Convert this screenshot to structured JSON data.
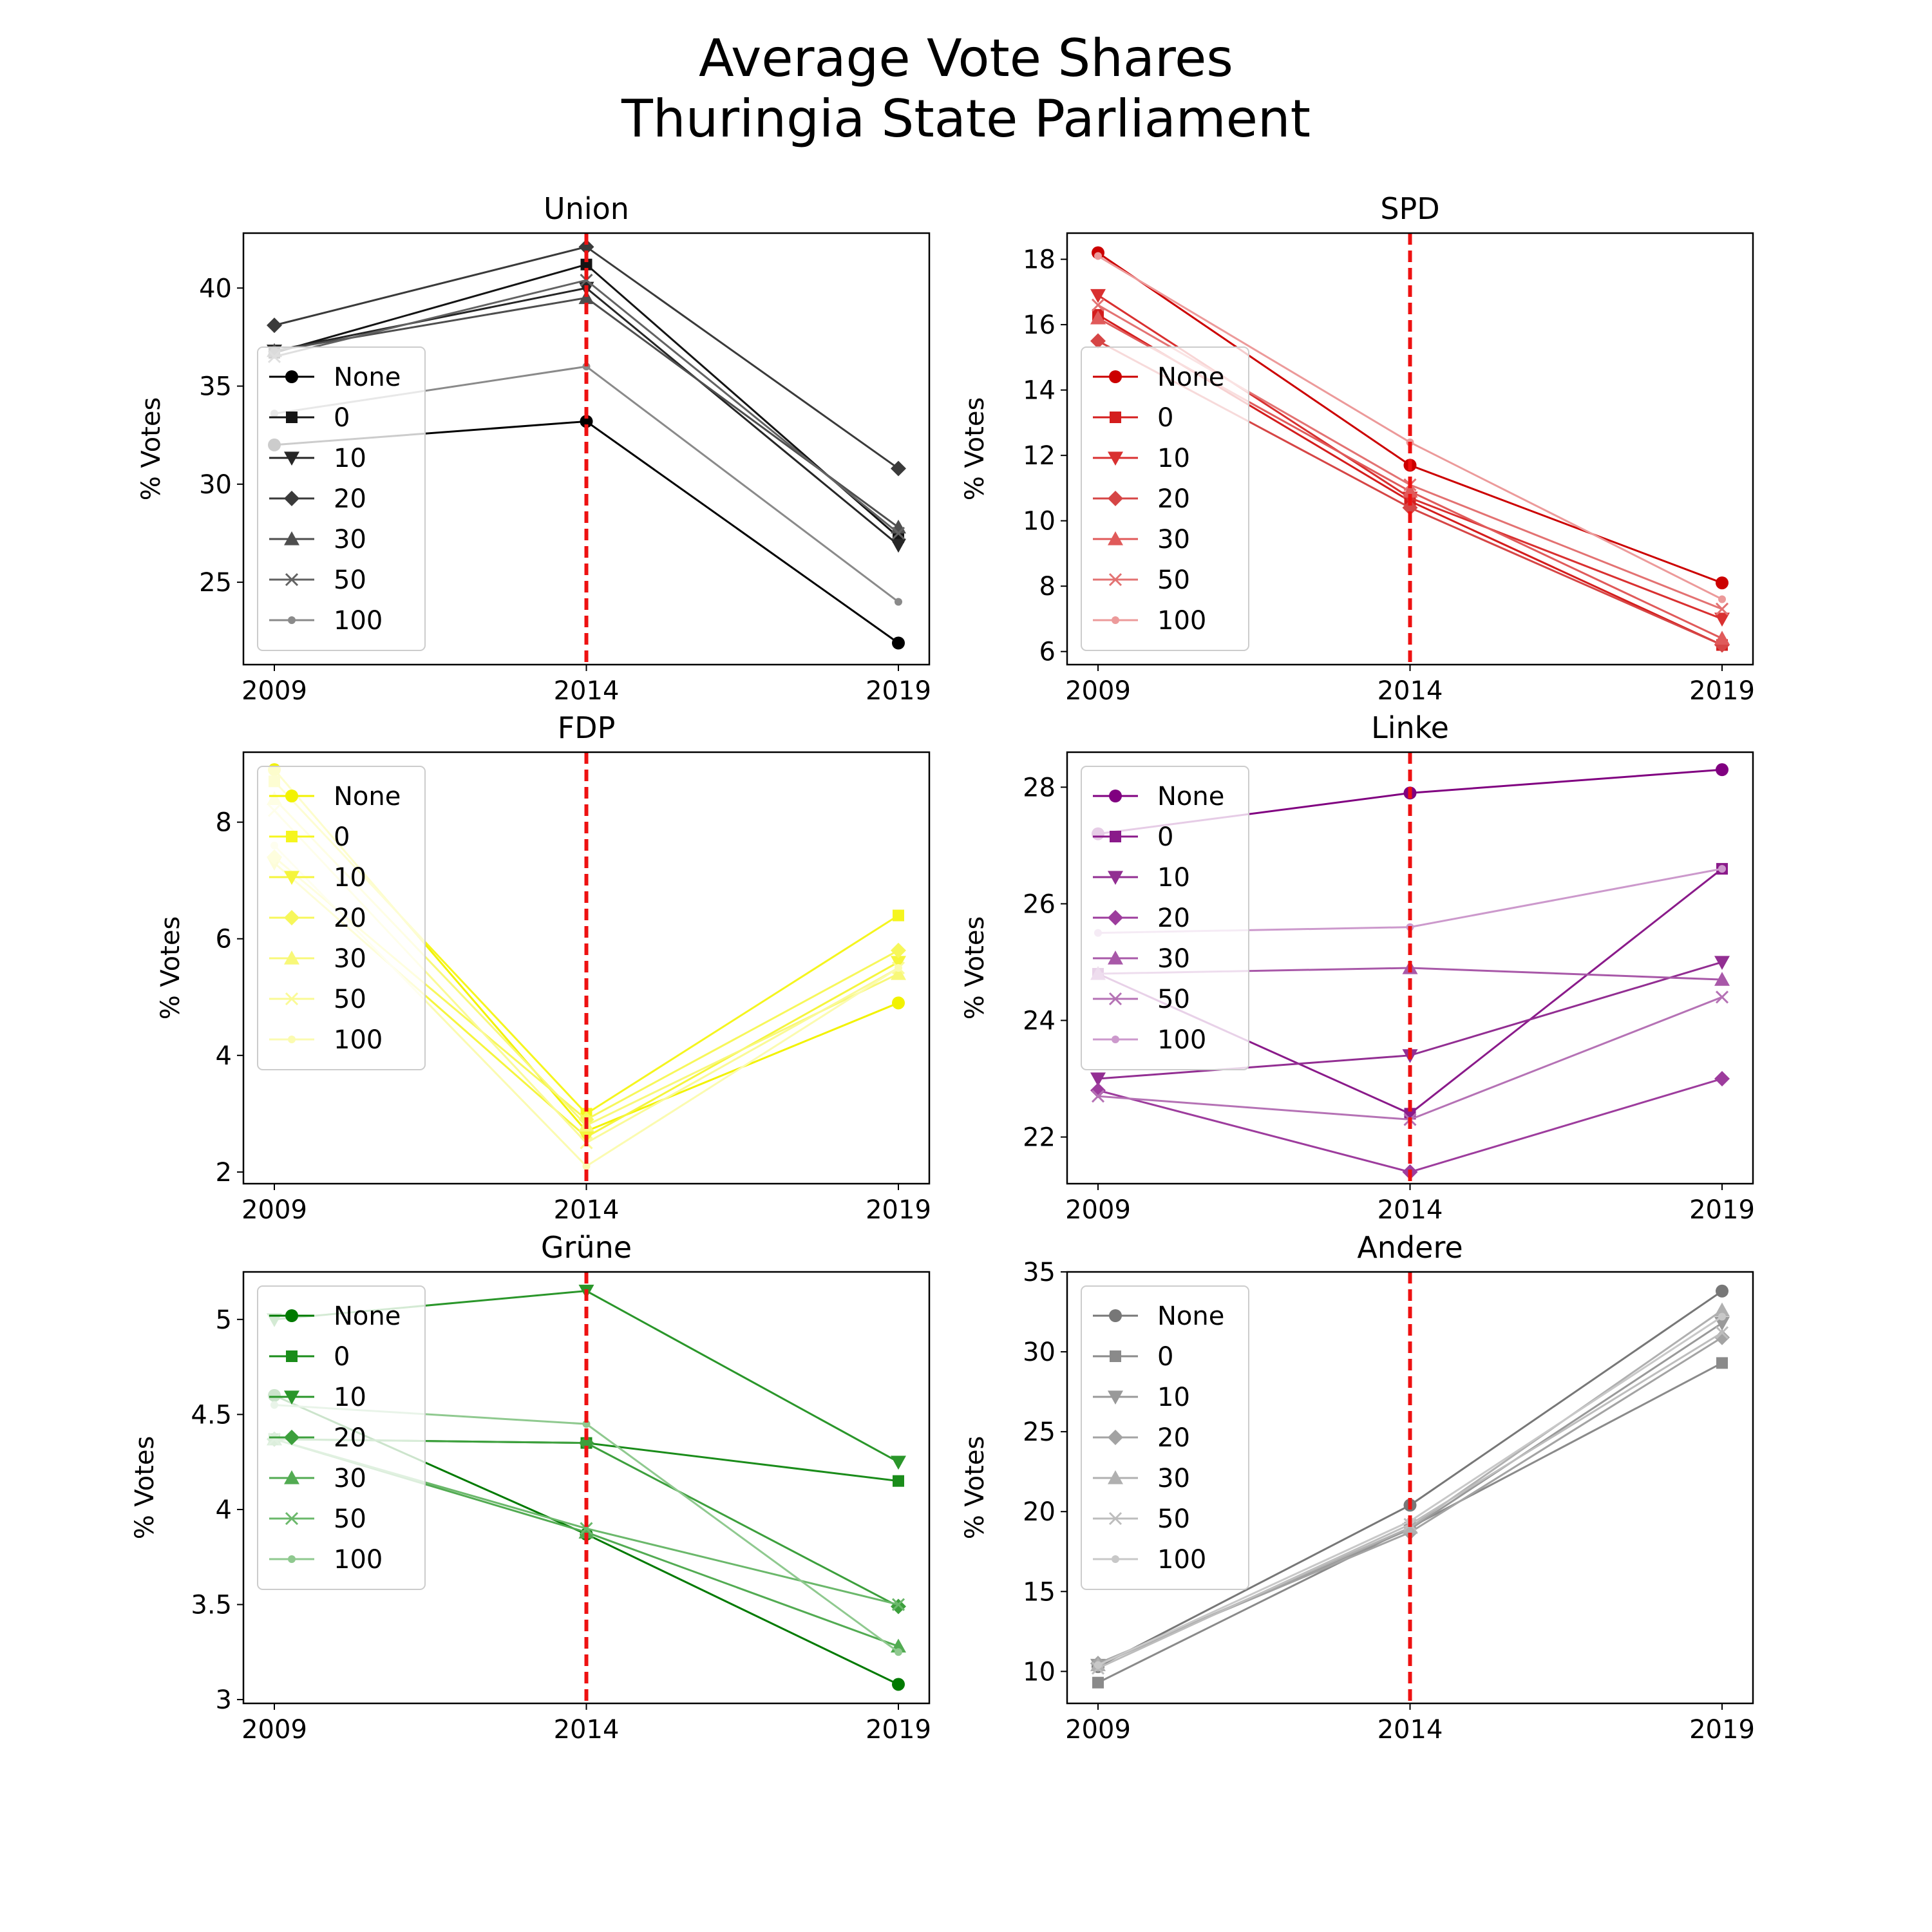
{
  "figure": {
    "title_line1": "Average Vote Shares",
    "title_line2": "Thuringia State Parliament"
  },
  "chart_data": [
    {
      "type": "line",
      "title": "Union",
      "xlabel": "",
      "ylabel": "% Votes",
      "x": [
        "2009",
        "2014",
        "2019"
      ],
      "ylim": [
        20.8,
        42.8
      ],
      "yticks": [
        25,
        30,
        35,
        40
      ],
      "legend": "lower-left",
      "reference_line": {
        "x": "2014",
        "color": "#ee1111"
      },
      "series": [
        {
          "name": "None",
          "marker": "circle",
          "color": "#000000",
          "values": [
            32.0,
            33.2,
            21.9
          ]
        },
        {
          "name": "0",
          "marker": "square",
          "color": "#141414",
          "values": [
            36.7,
            41.2,
            27.3
          ]
        },
        {
          "name": "10",
          "marker": "triangle-down",
          "color": "#262626",
          "values": [
            36.8,
            40.0,
            26.9
          ]
        },
        {
          "name": "20",
          "marker": "diamond",
          "color": "#3a3a3a",
          "values": [
            38.1,
            42.1,
            30.8
          ]
        },
        {
          "name": "30",
          "marker": "triangle-up",
          "color": "#4e4e4e",
          "values": [
            36.8,
            39.5,
            27.8
          ]
        },
        {
          "name": "50",
          "marker": "x",
          "color": "#626262",
          "values": [
            36.5,
            40.4,
            27.5
          ]
        },
        {
          "name": "100",
          "marker": "point",
          "color": "#8a8a8a",
          "values": [
            33.6,
            36.0,
            24.0
          ]
        }
      ]
    },
    {
      "type": "line",
      "title": "SPD",
      "xlabel": "",
      "ylabel": "% Votes",
      "x": [
        "2009",
        "2014",
        "2019"
      ],
      "ylim": [
        5.6,
        18.8
      ],
      "yticks": [
        6,
        8,
        10,
        12,
        14,
        16,
        18
      ],
      "legend": "lower-left",
      "reference_line": {
        "x": "2014",
        "color": "#ee1111"
      },
      "series": [
        {
          "name": "None",
          "marker": "circle",
          "color": "#cc0000",
          "values": [
            18.2,
            11.7,
            8.1
          ]
        },
        {
          "name": "0",
          "marker": "square",
          "color": "#d41d1d",
          "values": [
            16.3,
            10.6,
            6.2
          ]
        },
        {
          "name": "10",
          "marker": "triangle-down",
          "color": "#d93030",
          "values": [
            16.9,
            10.7,
            7.0
          ]
        },
        {
          "name": "20",
          "marker": "diamond",
          "color": "#d64545",
          "values": [
            15.5,
            10.4,
            6.2
          ]
        },
        {
          "name": "30",
          "marker": "triangle-up",
          "color": "#e05a5a",
          "values": [
            16.2,
            10.9,
            6.4
          ]
        },
        {
          "name": "50",
          "marker": "x",
          "color": "#e37272",
          "values": [
            16.6,
            11.1,
            7.3
          ]
        },
        {
          "name": "100",
          "marker": "point",
          "color": "#ec9a9a",
          "values": [
            18.1,
            12.4,
            7.6
          ]
        }
      ]
    },
    {
      "type": "line",
      "title": "FDP",
      "xlabel": "",
      "ylabel": "% Votes",
      "x": [
        "2009",
        "2014",
        "2019"
      ],
      "ylim": [
        1.8,
        9.2
      ],
      "yticks": [
        2,
        4,
        6,
        8
      ],
      "legend": "upper-left",
      "reference_line": {
        "x": "2014",
        "color": "#ee1111"
      },
      "series": [
        {
          "name": "None",
          "marker": "circle",
          "color": "#f2f200",
          "values": [
            8.9,
            2.7,
            4.9
          ]
        },
        {
          "name": "0",
          "marker": "square",
          "color": "#f5f51e",
          "values": [
            8.7,
            3.0,
            6.4
          ]
        },
        {
          "name": "10",
          "marker": "triangle-down",
          "color": "#f5f53c",
          "values": [
            7.3,
            2.6,
            5.6
          ]
        },
        {
          "name": "20",
          "marker": "diamond",
          "color": "#f7f75a",
          "values": [
            7.4,
            2.9,
            5.8
          ]
        },
        {
          "name": "30",
          "marker": "triangle-up",
          "color": "#f8f878",
          "values": [
            8.4,
            2.8,
            5.4
          ]
        },
        {
          "name": "50",
          "marker": "x",
          "color": "#fafa96",
          "values": [
            8.2,
            2.5,
            5.5
          ]
        },
        {
          "name": "100",
          "marker": "point",
          "color": "#fbfbb0",
          "values": [
            7.6,
            2.1,
            5.5
          ]
        }
      ]
    },
    {
      "type": "line",
      "title": "Linke",
      "xlabel": "",
      "ylabel": "% Votes",
      "x": [
        "2009",
        "2014",
        "2019"
      ],
      "ylim": [
        21.2,
        28.6
      ],
      "yticks": [
        22,
        24,
        26,
        28
      ],
      "legend": "upper-left",
      "reference_line": {
        "x": "2014",
        "color": "#ee1111"
      },
      "series": [
        {
          "name": "None",
          "marker": "circle",
          "color": "#800080",
          "values": [
            27.2,
            27.9,
            28.3
          ]
        },
        {
          "name": "0",
          "marker": "square",
          "color": "#8a1a8a",
          "values": [
            24.8,
            22.4,
            26.6
          ]
        },
        {
          "name": "10",
          "marker": "triangle-down",
          "color": "#922e92",
          "values": [
            23.0,
            23.4,
            25.0
          ]
        },
        {
          "name": "20",
          "marker": "diamond",
          "color": "#9d3c9d",
          "values": [
            22.8,
            21.4,
            23.0
          ]
        },
        {
          "name": "30",
          "marker": "triangle-up",
          "color": "#a858a8",
          "values": [
            24.8,
            24.9,
            24.7
          ]
        },
        {
          "name": "50",
          "marker": "x",
          "color": "#b572b5",
          "values": [
            22.7,
            22.3,
            24.4
          ]
        },
        {
          "name": "100",
          "marker": "point",
          "color": "#cc99cc",
          "values": [
            25.5,
            25.6,
            26.6
          ]
        }
      ]
    },
    {
      "type": "line",
      "title": "Grüne",
      "xlabel": "",
      "ylabel": "% Votes",
      "x": [
        "2009",
        "2014",
        "2019"
      ],
      "ylim": [
        2.98,
        5.25
      ],
      "yticks": [
        3.0,
        3.5,
        4.0,
        4.5,
        5.0
      ],
      "legend": "upper-left",
      "reference_line": {
        "x": "2014",
        "color": "#ee1111"
      },
      "series": [
        {
          "name": "None",
          "marker": "circle",
          "color": "#007a00",
          "values": [
            4.6,
            3.87,
            3.08
          ]
        },
        {
          "name": "0",
          "marker": "square",
          "color": "#1a8c1a",
          "values": [
            4.37,
            4.35,
            4.15
          ]
        },
        {
          "name": "10",
          "marker": "triangle-down",
          "color": "#2a962a",
          "values": [
            5.0,
            5.15,
            4.25
          ]
        },
        {
          "name": "20",
          "marker": "diamond",
          "color": "#3c9f3c",
          "values": [
            4.37,
            4.35,
            3.49
          ]
        },
        {
          "name": "30",
          "marker": "triangle-up",
          "color": "#52ab52",
          "values": [
            4.37,
            3.88,
            3.28
          ]
        },
        {
          "name": "50",
          "marker": "x",
          "color": "#6bb86b",
          "values": [
            4.37,
            3.9,
            3.5
          ]
        },
        {
          "name": "100",
          "marker": "point",
          "color": "#8fc98f",
          "values": [
            4.55,
            4.45,
            3.25
          ]
        }
      ]
    },
    {
      "type": "line",
      "title": "Andere",
      "xlabel": "",
      "ylabel": "% Votes",
      "x": [
        "2009",
        "2014",
        "2019"
      ],
      "ylim": [
        8,
        35
      ],
      "yticks": [
        10,
        15,
        20,
        25,
        30,
        35
      ],
      "legend": "upper-left",
      "reference_line": {
        "x": "2014",
        "color": "#ee1111"
      },
      "series": [
        {
          "name": "None",
          "marker": "circle",
          "color": "#777777",
          "values": [
            10.3,
            20.4,
            33.8
          ]
        },
        {
          "name": "0",
          "marker": "square",
          "color": "#8a8a8a",
          "values": [
            9.3,
            19.0,
            29.3
          ]
        },
        {
          "name": "10",
          "marker": "triangle-down",
          "color": "#999999",
          "values": [
            10.4,
            18.9,
            31.8
          ]
        },
        {
          "name": "20",
          "marker": "diamond",
          "color": "#a3a3a3",
          "values": [
            10.5,
            18.7,
            30.9
          ]
        },
        {
          "name": "30",
          "marker": "triangle-up",
          "color": "#b0b0b0",
          "values": [
            10.4,
            19.0,
            32.6
          ]
        },
        {
          "name": "50",
          "marker": "x",
          "color": "#bdbdbd",
          "values": [
            10.2,
            19.2,
            31.2
          ]
        },
        {
          "name": "100",
          "marker": "point",
          "color": "#c8c8c8",
          "values": [
            10.4,
            19.4,
            32.2
          ]
        }
      ]
    }
  ]
}
